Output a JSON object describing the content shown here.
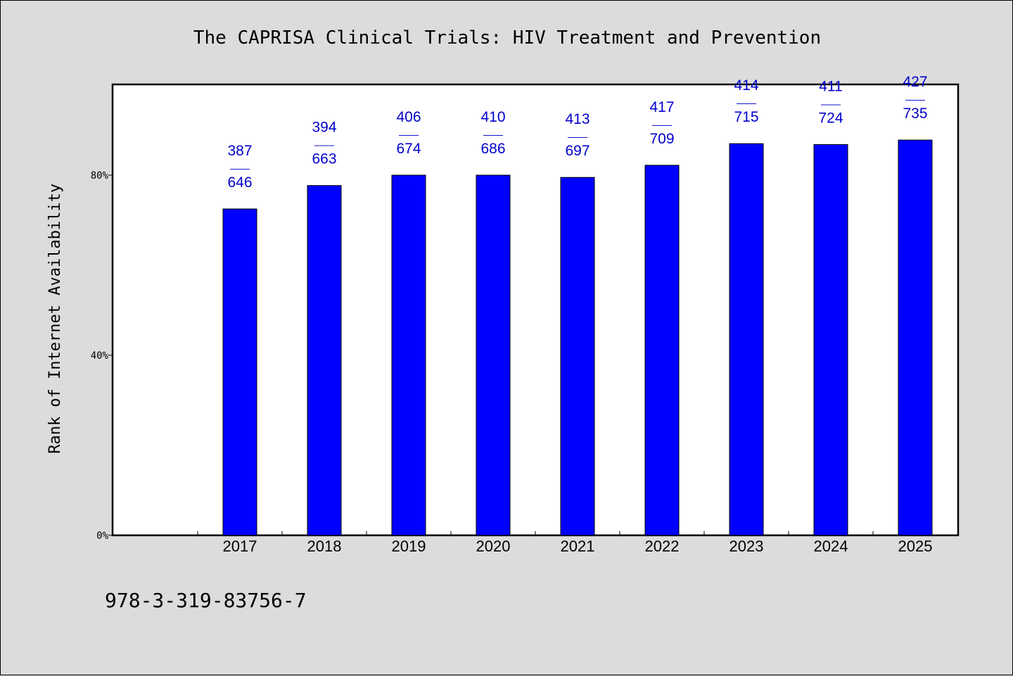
{
  "chart_data": {
    "type": "bar",
    "title": "The CAPRISA Clinical Trials: HIV Treatment and Prevention",
    "ylabel": "Rank of Internet Availability",
    "xlabel": "",
    "ylim": [
      0,
      100
    ],
    "yticks": [
      {
        "value": 0,
        "label": "0%"
      },
      {
        "value": 40,
        "label": "40%"
      },
      {
        "value": 80,
        "label": "80%"
      }
    ],
    "categories": [
      "2017",
      "2018",
      "2019",
      "2020",
      "2021",
      "2022",
      "2023",
      "2024",
      "2025"
    ],
    "values": [
      72.5,
      77.7,
      80.0,
      80.0,
      79.5,
      82.2,
      87.0,
      86.8,
      87.8
    ],
    "data_labels": [
      {
        "top": "387",
        "sep": "——",
        "bottom": "646"
      },
      {
        "top": "394",
        "sep": "——",
        "bottom": "663"
      },
      {
        "top": "406",
        "sep": "——",
        "bottom": "674"
      },
      {
        "top": "410",
        "sep": "——",
        "bottom": "686"
      },
      {
        "top": "413",
        "sep": "——",
        "bottom": "697"
      },
      {
        "top": "417",
        "sep": "——",
        "bottom": "709"
      },
      {
        "top": "414",
        "sep": "——",
        "bottom": "715"
      },
      {
        "top": "411",
        "sep": "——",
        "bottom": "724"
      },
      {
        "top": "427",
        "sep": "——",
        "bottom": "735"
      }
    ],
    "grid": false,
    "legend": "none",
    "colors": {
      "bar": "#0000ff",
      "bar_outline": "#000000",
      "data_label": "#0000cc",
      "plot_background": "#ffffff",
      "figure_background": "#dcdcdc"
    }
  },
  "footer": {
    "isbn": "978-3-319-83756-7"
  }
}
